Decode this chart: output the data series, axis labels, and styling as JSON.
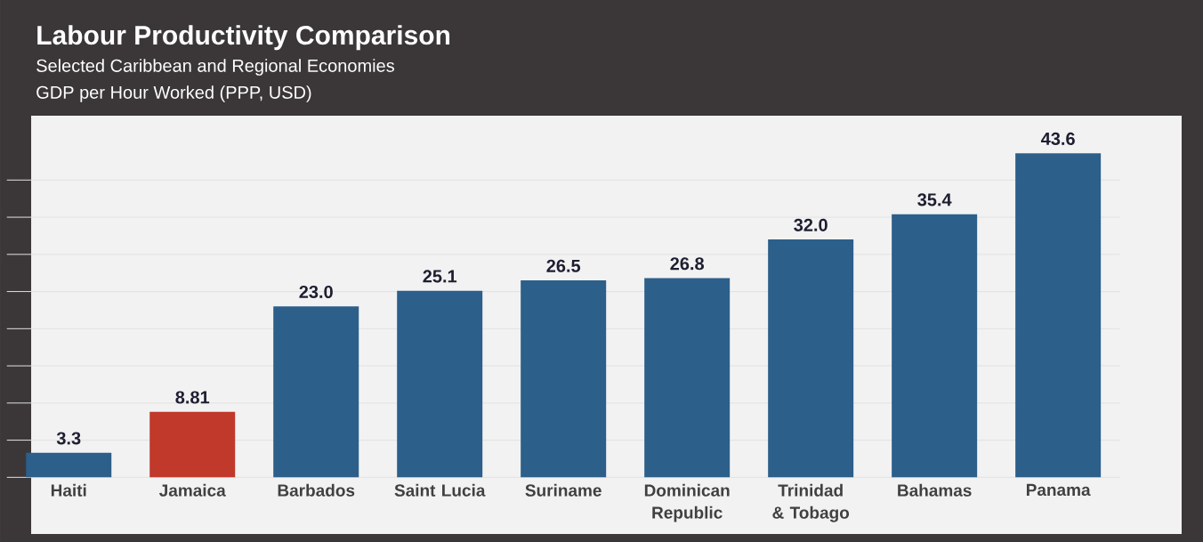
{
  "chart_data": {
    "type": "bar",
    "title": "Labour Productivity Comparison",
    "subtitle": "Selected Caribbean and Regional Economies",
    "ylabel": "GDP per Hour Worked (PPP, USD)",
    "categories": [
      "Haiti",
      "Jamaica",
      "Barbados",
      "Saint Lucia",
      "Suriname",
      "Dominican Republic",
      "Trinidad & Tobago",
      "Bahamas",
      "Panama"
    ],
    "values": [
      3.3,
      8.81,
      23.0,
      25.1,
      26.5,
      26.8,
      32.0,
      35.4,
      43.6
    ],
    "value_labels": [
      "3.3",
      "8.81",
      "23.0",
      "25.1",
      "26.5",
      "26.8",
      "32.0",
      "35.4",
      "43.6"
    ],
    "colors": [
      "#2c5f8a",
      "#c0392b",
      "#2c5f8a",
      "#2c5f8a",
      "#2c5f8a",
      "#2c5f8a",
      "#2c5f8a",
      "#2c5f8a",
      "#2c5f8a"
    ],
    "grid": "y",
    "tick_labels": "x"
  }
}
